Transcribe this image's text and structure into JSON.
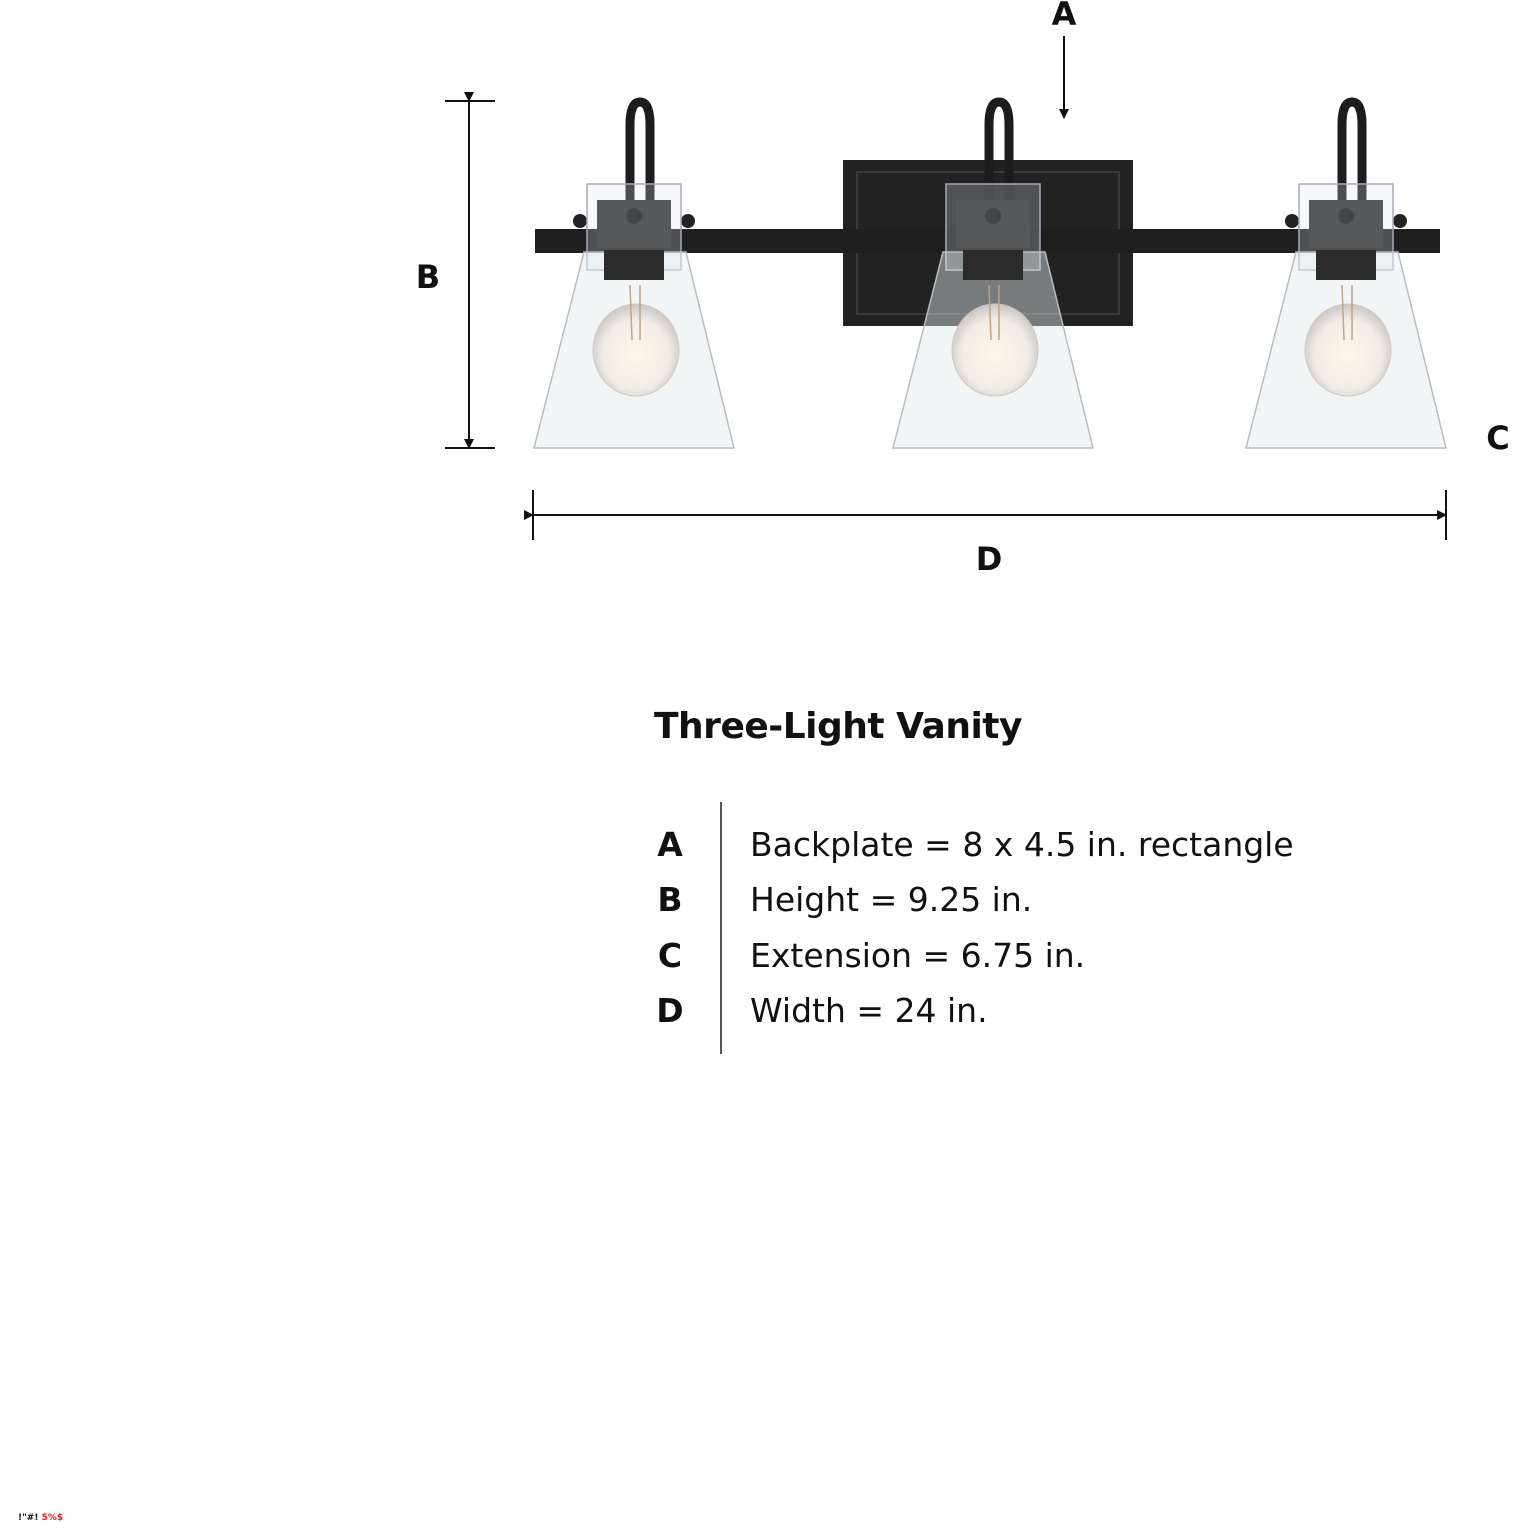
{
  "labels": {
    "a": "A",
    "b": "B",
    "c": "C",
    "d": "D"
  },
  "title": "Three-Light Vanity",
  "specs": [
    {
      "key": "A",
      "value": "Backplate = 8 x 4.5 in. rectangle"
    },
    {
      "key": "B",
      "value": "Height = 9.25 in."
    },
    {
      "key": "C",
      "value": "Extension = 6.75 in."
    },
    {
      "key": "D",
      "value": "Width = 24 in."
    }
  ],
  "footer": {
    "black": "!\"#!",
    "red": "5%$"
  },
  "colors": {
    "metal": "#1c1c1c",
    "glass": "#e8ecee",
    "accent": "#e02020"
  }
}
